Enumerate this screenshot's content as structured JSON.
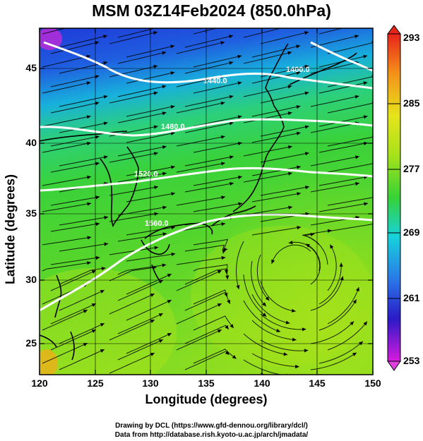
{
  "title": "MSM 03Z14Feb2024 (850.0hPa)",
  "xlabel": "Longitude (degrees)",
  "ylabel": "Latitude  (degrees)",
  "x_ticks": [
    "120",
    "125",
    "130",
    "135",
    "140",
    "145",
    "150"
  ],
  "y_ticks": [
    "45",
    "40",
    "35",
    "30",
    "25"
  ],
  "colorbar_ticks": [
    "293",
    "285",
    "277",
    "269",
    "261",
    "253"
  ],
  "contour_labels": [
    "1400.0",
    "1440.0",
    "1480.0",
    "1520.0",
    "1560.0"
  ],
  "credit_line1": "Drawing by DCL (https://www.gfd-dennou.org/library/dcl/)",
  "credit_line2": "Data from http://database.rish.kyoto-u.ac.jp/arch/jmadata/",
  "chart_data": {
    "type": "heatmap",
    "variable": "850 hPa temperature (K) with streamlines and geopotential height contours",
    "xlim": [
      120,
      150
    ],
    "ylim": [
      22.6,
      47.8
    ],
    "colorbar_range": [
      253,
      293
    ],
    "colorbar_ticks": [
      293,
      285,
      277,
      269,
      261,
      253
    ],
    "contour_levels": [
      1400,
      1440,
      1480,
      1520,
      1560
    ],
    "colors": {
      "magenta": "#d81adc",
      "blue": "#1f3ad8",
      "cyan": "#16d2dc",
      "green": "#36d236",
      "yellow_green": "#a8e21a",
      "orange": "#f4901a",
      "red": "#e8241a"
    }
  }
}
